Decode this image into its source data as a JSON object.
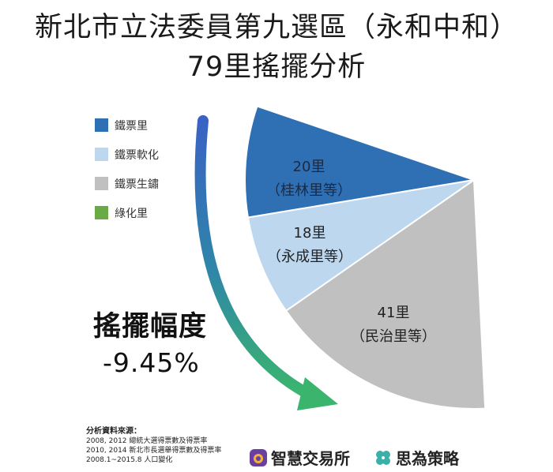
{
  "title": {
    "line1": "新北市立法委員第九選區（永和中和）",
    "line2": "79里搖擺分析"
  },
  "chart_data": {
    "type": "pie",
    "slices": [
      {
        "name": "鐵票里",
        "value": 20,
        "label_count": "20里",
        "label_example": "（桂林里等）",
        "color": "#2f6fb3"
      },
      {
        "name": "鐵票軟化",
        "value": 18,
        "label_count": "18里",
        "label_example": "（永成里等）",
        "color": "#bdd7ee"
      },
      {
        "name": "鐵票生鏽",
        "value": 41,
        "label_count": "41里",
        "label_example": "（民治里等）",
        "color": "#c0c0c0"
      }
    ],
    "legend": [
      {
        "label": "鐵票里",
        "color": "#2f6fb3"
      },
      {
        "label": "鐵票軟化",
        "color": "#bdd7ee"
      },
      {
        "label": "鐵票生鏽",
        "color": "#c0c0c0"
      },
      {
        "label": "綠化里",
        "color": "#6aaa44"
      }
    ],
    "legend_position": "top-left"
  },
  "swing": {
    "title": "搖擺幅度",
    "value": "-9.45%"
  },
  "sources": {
    "heading": "分析資料來源：",
    "lines": [
      "2008, 2012 總統大選得票數及得票率",
      "2010, 2014 新北市長選舉得票數及得票率",
      "2008.1~2015.8 人口變化"
    ]
  },
  "brands": {
    "brand1": "智慧交易所",
    "brand2": "思為策略",
    "brand1_icon": "owl-logo-icon",
    "brand2_icon": "clover-logo-icon",
    "brand1_color": "#6a3fa0",
    "brand2_color": "#3ab0a8"
  }
}
